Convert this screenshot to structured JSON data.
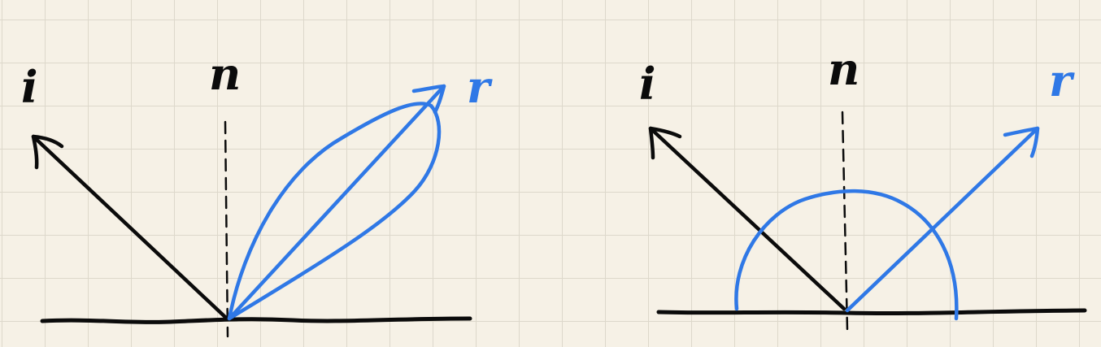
{
  "diagrams": [
    {
      "id": "specular",
      "labels": {
        "incident": "i",
        "normal": "n",
        "reflected": "r"
      }
    },
    {
      "id": "diffuse",
      "labels": {
        "incident": "i",
        "normal": "n",
        "reflected": "r"
      }
    }
  ],
  "colors": {
    "ink": "#0b0b0b",
    "blue": "#2f78e6",
    "paper": "#f6f1e6",
    "grid": "#ddd8cb"
  }
}
